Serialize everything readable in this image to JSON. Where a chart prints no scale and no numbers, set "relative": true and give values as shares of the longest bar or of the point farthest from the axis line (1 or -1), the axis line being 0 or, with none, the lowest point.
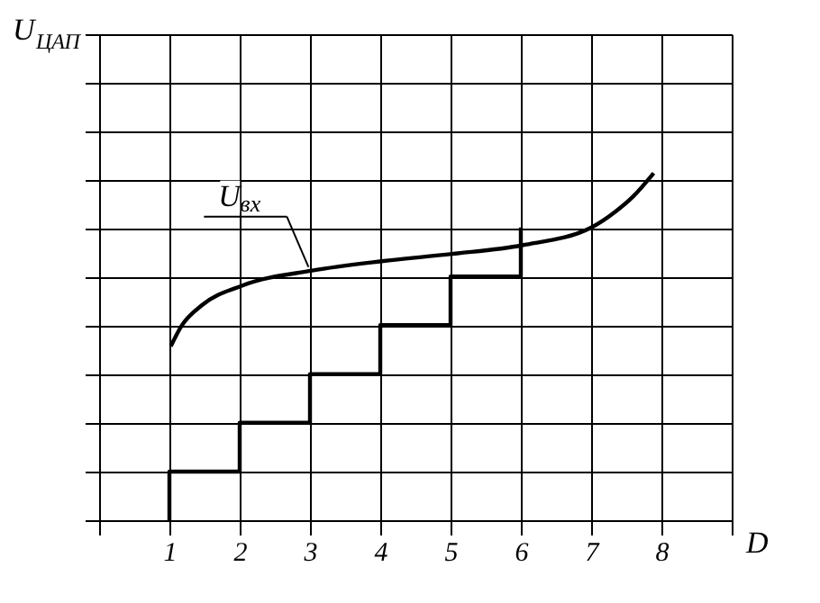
{
  "chart_data": {
    "type": "line",
    "relative": true,
    "xlabel": "D",
    "ylabel": "U$_{ЦАП}$",
    "xlim": [
      0,
      9
    ],
    "xticks": [
      {
        "value": 0,
        "label": null
      },
      1,
      2,
      3,
      4,
      5,
      6,
      7,
      8,
      {
        "value": 9,
        "label": null
      }
    ],
    "grid": true,
    "tick_labels": "x",
    "line_style": "solid",
    "marker": "none",
    "series": [
      {
        "color": "#000000",
        "x": [
          1,
          1,
          2,
          2,
          3,
          3,
          4,
          4,
          5,
          5,
          6,
          6
        ],
        "values": [
          0,
          0.14,
          0.14,
          0.281,
          0.281,
          0.421,
          0.421,
          0.562,
          0.562,
          0.702,
          0.702,
          0.843
        ]
      },
      {
        "name": "U$_{вх}$",
        "color": "#000000",
        "x": [
          1.02,
          1.17,
          1.46,
          2.04,
          3.03,
          4.02,
          5.02,
          6.02,
          7.01,
          7.34,
          7.59,
          7.89
        ],
        "values": [
          0.501,
          0.559,
          0.619,
          0.676,
          0.719,
          0.746,
          0.767,
          0.792,
          0.844,
          0.888,
          0.931,
          1
        ]
      }
    ]
  }
}
